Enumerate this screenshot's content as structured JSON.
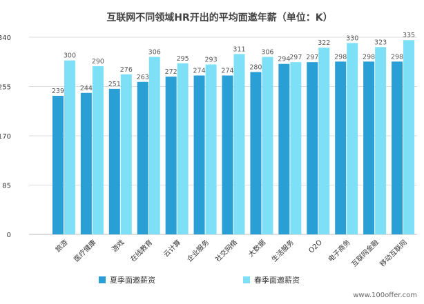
{
  "chart_data": {
    "type": "bar",
    "title": "互联网不同领域HR开出的平均面邀年薪（单位：K）",
    "xlabel": "",
    "ylabel": "",
    "ylim": [
      0,
      340
    ],
    "yticks": [
      0,
      85,
      170,
      255,
      340
    ],
    "ytick_labels": [
      "0",
      "85",
      "170",
      "255",
      "340"
    ],
    "grid": true,
    "legend_position": "bottom",
    "categories": [
      "旅游",
      "医疗健康",
      "游戏",
      "在线教育",
      "云计算",
      "企业服务",
      "社交网络",
      "大数据",
      "生活服务",
      "O2O",
      "电子商务",
      "互联网金融",
      "移动互联网"
    ],
    "series": [
      {
        "name": "夏季面邀薪资",
        "color": "#2a9fd6",
        "values": [
          239,
          244,
          251,
          263,
          272,
          274,
          274,
          280,
          294,
          297,
          298,
          298,
          298
        ]
      },
      {
        "name": "春季面邀薪资",
        "color": "#7ee0f7",
        "values": [
          300,
          290,
          276,
          306,
          295,
          293,
          311,
          306,
          297,
          322,
          330,
          323,
          335
        ]
      }
    ]
  },
  "watermark": "www.100offer.com"
}
